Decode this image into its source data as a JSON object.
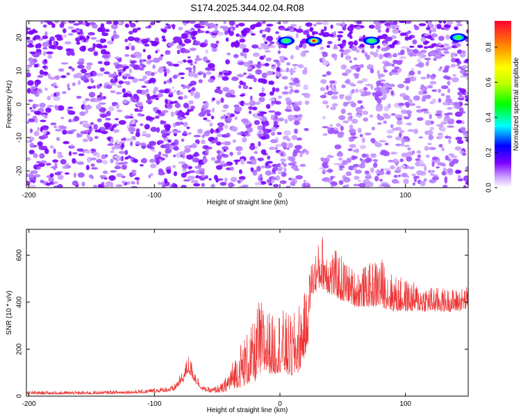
{
  "title": "S174.2025.344.02.04.R08",
  "chart_data": [
    {
      "type": "heatmap",
      "xlabel": "Height of straight line (km)",
      "ylabel": "Frequency (Hz)",
      "xlim": [
        -202,
        150
      ],
      "ylim": [
        -25,
        25
      ],
      "xticks": [
        -200,
        -100,
        0,
        100
      ],
      "yticks": [
        -20,
        -10,
        0,
        10,
        20
      ],
      "colorbar": {
        "label": "Normalized spectral amplitude",
        "range": [
          0,
          0.95
        ],
        "ticks": [
          0.0,
          0.2,
          0.4,
          0.6,
          0.8
        ]
      },
      "hotspots": [
        {
          "x": 5,
          "y": 19,
          "amplitude": 0.35
        },
        {
          "x": 27,
          "y": 19,
          "amplitude": 0.85
        },
        {
          "x": 73,
          "y": 19,
          "amplitude": 0.4
        },
        {
          "x": 142,
          "y": 20,
          "amplitude": 0.35
        }
      ],
      "gap": {
        "from": 22,
        "to": 33
      },
      "strong_band_y": [
        17,
        24
      ]
    },
    {
      "type": "line",
      "xlabel": "Height of straight line (km)",
      "ylabel": "SNR (10 * v/v)",
      "xlim": [
        -202,
        150
      ],
      "ylim": [
        0,
        710
      ],
      "xticks": [
        -200,
        -100,
        0,
        100
      ],
      "yticks": [
        0,
        200,
        400,
        600
      ],
      "color": "#ee3333",
      "envelope": {
        "x": [
          -202,
          -150,
          -110,
          -85,
          -77,
          -73,
          -68,
          -62,
          -55,
          -45,
          -38,
          -30,
          -20,
          -17,
          -10,
          -5,
          0,
          5,
          10,
          15,
          22,
          23,
          25,
          30,
          33,
          40,
          45,
          50,
          55,
          60,
          70,
          80,
          90,
          100,
          110,
          120,
          130,
          140,
          150
        ],
        "base": [
          8,
          8,
          12,
          20,
          60,
          100,
          60,
          25,
          15,
          15,
          30,
          40,
          60,
          80,
          100,
          90,
          100,
          90,
          80,
          100,
          200,
          300,
          420,
          450,
          460,
          430,
          420,
          400,
          400,
          380,
          380,
          380,
          360,
          360,
          360,
          360,
          360,
          360,
          370
        ],
        "top": [
          22,
          22,
          28,
          45,
          110,
          180,
          120,
          45,
          35,
          60,
          150,
          250,
          320,
          420,
          380,
          340,
          380,
          360,
          340,
          400,
          460,
          520,
          580,
          640,
          700,
          640,
          620,
          600,
          560,
          540,
          560,
          600,
          520,
          500,
          480,
          470,
          460,
          460,
          470
        ]
      }
    }
  ]
}
